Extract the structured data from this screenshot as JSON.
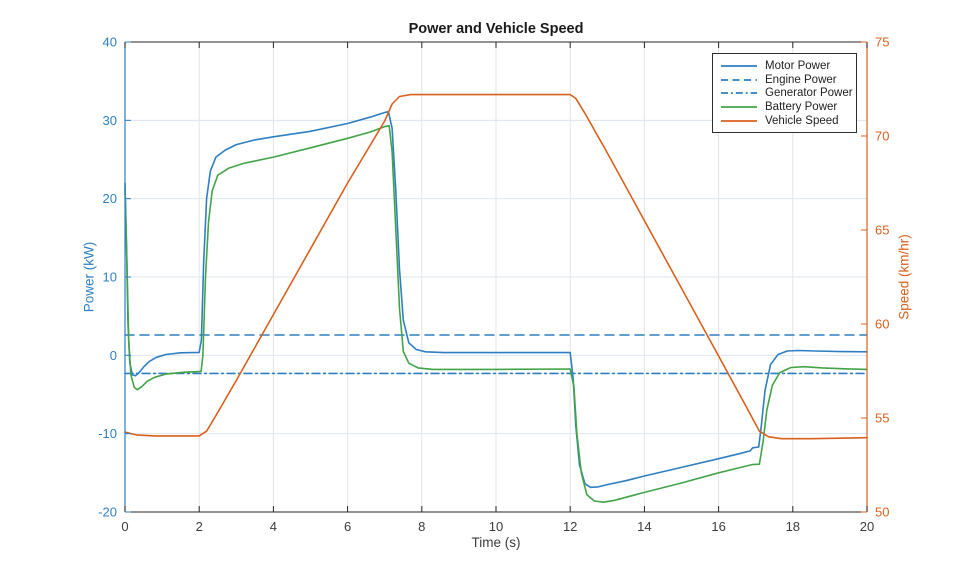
{
  "chart_data": {
    "type": "line",
    "title": "Power and Vehicle Speed",
    "xlabel": "Time (s)",
    "ylabel_left": "Power (kW)",
    "ylabel_right": "Speed (km/hr)",
    "xlim": [
      0,
      20
    ],
    "ylim_left": [
      -20,
      40
    ],
    "ylim_right": [
      50,
      75
    ],
    "x_ticks": [
      0,
      2,
      4,
      6,
      8,
      10,
      12,
      14,
      16,
      18,
      20
    ],
    "y_ticks_left": [
      -20,
      -10,
      0,
      10,
      20,
      30,
      40
    ],
    "y_ticks_right": [
      50,
      55,
      60,
      65,
      70,
      75
    ],
    "grid": true,
    "legend_position": "top-right",
    "colors": {
      "blue": "#2e7fc2",
      "orange": "#d9611e",
      "green": "#43a447",
      "grid_horizontal": "#dde4ee",
      "grid_vertical": "#e4e4e4",
      "axis_dark": "#262626",
      "x_tick_label": "#3c3c3c"
    },
    "series": [
      {
        "name": "Motor Power",
        "axis": "left",
        "color": "#2e7fc2",
        "style": "solid",
        "points": [
          [
            0,
            22
          ],
          [
            0.04,
            14
          ],
          [
            0.08,
            4
          ],
          [
            0.13,
            -1
          ],
          [
            0.2,
            -2.5
          ],
          [
            0.28,
            -2.6
          ],
          [
            0.38,
            -2.2
          ],
          [
            0.5,
            -1.5
          ],
          [
            0.65,
            -0.8
          ],
          [
            0.85,
            -0.25
          ],
          [
            1.1,
            0.1
          ],
          [
            1.5,
            0.32
          ],
          [
            2.0,
            0.38
          ],
          [
            2.06,
            2
          ],
          [
            2.12,
            12
          ],
          [
            2.2,
            20
          ],
          [
            2.3,
            23.5
          ],
          [
            2.45,
            25.3
          ],
          [
            2.7,
            26.2
          ],
          [
            3.0,
            26.9
          ],
          [
            3.5,
            27.5
          ],
          [
            4,
            27.9
          ],
          [
            5,
            28.6
          ],
          [
            6,
            29.6
          ],
          [
            6.6,
            30.4
          ],
          [
            7.0,
            31.0
          ],
          [
            7.1,
            31.1
          ],
          [
            7.2,
            29
          ],
          [
            7.3,
            21
          ],
          [
            7.4,
            11
          ],
          [
            7.5,
            4.5
          ],
          [
            7.65,
            1.6
          ],
          [
            7.85,
            0.75
          ],
          [
            8.1,
            0.45
          ],
          [
            8.6,
            0.35
          ],
          [
            10,
            0.35
          ],
          [
            12.0,
            0.35
          ],
          [
            12.08,
            -3
          ],
          [
            12.15,
            -9
          ],
          [
            12.25,
            -14
          ],
          [
            12.4,
            -16.4
          ],
          [
            12.55,
            -16.85
          ],
          [
            12.75,
            -16.8
          ],
          [
            13,
            -16.5
          ],
          [
            13.5,
            -16.0
          ],
          [
            14,
            -15.4
          ],
          [
            15,
            -14.3
          ],
          [
            16,
            -13.2
          ],
          [
            16.6,
            -12.5
          ],
          [
            16.85,
            -12.2
          ],
          [
            16.92,
            -11.8
          ],
          [
            17.08,
            -11.7
          ],
          [
            17.15,
            -9
          ],
          [
            17.25,
            -4.5
          ],
          [
            17.4,
            -1.2
          ],
          [
            17.6,
            0.1
          ],
          [
            17.85,
            0.55
          ],
          [
            18.15,
            0.62
          ],
          [
            18.6,
            0.55
          ],
          [
            19.3,
            0.48
          ],
          [
            20,
            0.45
          ]
        ]
      },
      {
        "name": "Engine Power",
        "axis": "left",
        "color": "#2e7fc2",
        "style": "dashed",
        "points": [
          [
            0,
            2.6
          ],
          [
            20,
            2.6
          ]
        ]
      },
      {
        "name": "Generator Power",
        "axis": "left",
        "color": "#2e7fc2",
        "style": "dashdot",
        "points": [
          [
            0,
            -2.3
          ],
          [
            20,
            -2.3
          ]
        ]
      },
      {
        "name": "Battery Power",
        "axis": "left",
        "color": "#43a447",
        "style": "solid",
        "points": [
          [
            0,
            21.3
          ],
          [
            0.05,
            12
          ],
          [
            0.1,
            2
          ],
          [
            0.16,
            -2.5
          ],
          [
            0.25,
            -4.1
          ],
          [
            0.33,
            -4.4
          ],
          [
            0.45,
            -4.0
          ],
          [
            0.6,
            -3.3
          ],
          [
            0.8,
            -2.8
          ],
          [
            1.1,
            -2.4
          ],
          [
            1.6,
            -2.15
          ],
          [
            2.05,
            -2.05
          ],
          [
            2.1,
            0
          ],
          [
            2.17,
            10
          ],
          [
            2.25,
            17
          ],
          [
            2.35,
            21
          ],
          [
            2.5,
            23.0
          ],
          [
            2.8,
            23.9
          ],
          [
            3.2,
            24.5
          ],
          [
            4,
            25.3
          ],
          [
            5,
            26.5
          ],
          [
            6,
            27.7
          ],
          [
            6.6,
            28.5
          ],
          [
            7.0,
            29.2
          ],
          [
            7.12,
            29.3
          ],
          [
            7.2,
            26
          ],
          [
            7.3,
            16
          ],
          [
            7.4,
            6
          ],
          [
            7.5,
            0.5
          ],
          [
            7.65,
            -1.0
          ],
          [
            7.9,
            -1.6
          ],
          [
            8.3,
            -1.8
          ],
          [
            10,
            -1.8
          ],
          [
            12.0,
            -1.75
          ],
          [
            12.1,
            -4
          ],
          [
            12.18,
            -10
          ],
          [
            12.3,
            -15
          ],
          [
            12.45,
            -17.8
          ],
          [
            12.65,
            -18.6
          ],
          [
            12.9,
            -18.75
          ],
          [
            13.2,
            -18.5
          ],
          [
            13.6,
            -18.0
          ],
          [
            14,
            -17.5
          ],
          [
            15,
            -16.3
          ],
          [
            16,
            -15.0
          ],
          [
            16.6,
            -14.3
          ],
          [
            16.9,
            -13.95
          ],
          [
            17.1,
            -13.9
          ],
          [
            17.2,
            -11
          ],
          [
            17.3,
            -7
          ],
          [
            17.45,
            -3.8
          ],
          [
            17.65,
            -2.2
          ],
          [
            17.95,
            -1.55
          ],
          [
            18.3,
            -1.45
          ],
          [
            18.8,
            -1.6
          ],
          [
            19.4,
            -1.72
          ],
          [
            20,
            -1.8
          ]
        ]
      },
      {
        "name": "Vehicle Speed",
        "axis": "right",
        "color": "#d9611e",
        "style": "solid",
        "points": [
          [
            0,
            54.25
          ],
          [
            0.3,
            54.1
          ],
          [
            0.8,
            54.05
          ],
          [
            2.0,
            54.05
          ],
          [
            2.2,
            54.3
          ],
          [
            2.5,
            55.3
          ],
          [
            3,
            57.0
          ],
          [
            4,
            60.5
          ],
          [
            5,
            64.0
          ],
          [
            6,
            67.5
          ],
          [
            7,
            70.8
          ],
          [
            7.2,
            71.7
          ],
          [
            7.4,
            72.1
          ],
          [
            7.7,
            72.2
          ],
          [
            12,
            72.2
          ],
          [
            12.15,
            72.0
          ],
          [
            12.4,
            71.2
          ],
          [
            13,
            69.1
          ],
          [
            14,
            65.5
          ],
          [
            15,
            61.9
          ],
          [
            16,
            58.3
          ],
          [
            16.8,
            55.4
          ],
          [
            17.1,
            54.3
          ],
          [
            17.35,
            54.0
          ],
          [
            17.7,
            53.9
          ],
          [
            18.5,
            53.9
          ],
          [
            20,
            53.95
          ]
        ]
      }
    ]
  }
}
